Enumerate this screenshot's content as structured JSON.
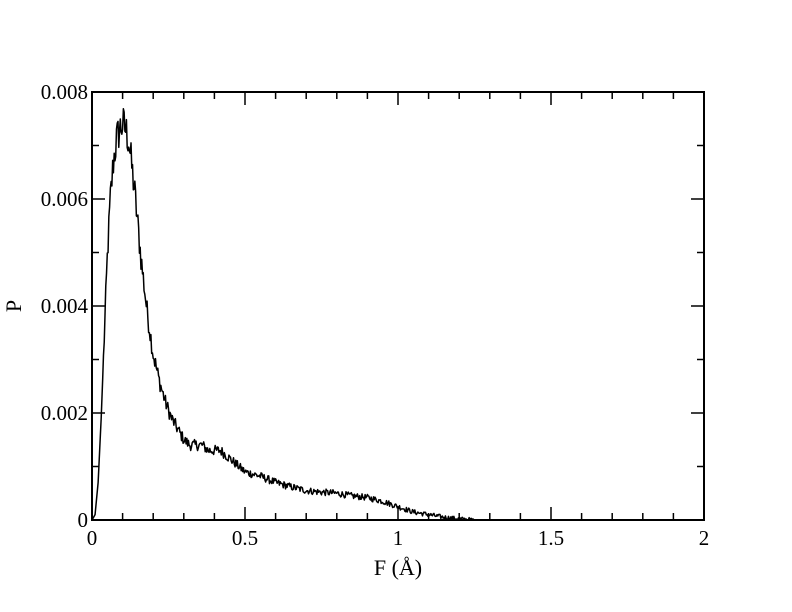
{
  "chart_data": {
    "type": "line",
    "xlabel": "F (Å)",
    "ylabel": "P",
    "xlim": [
      0,
      2
    ],
    "ylim": [
      0,
      0.008
    ],
    "x_major_ticks": [
      0,
      0.5,
      1,
      1.5,
      2
    ],
    "x_tick_labels": [
      "0",
      "0.5",
      "1",
      "1.5",
      "2"
    ],
    "x_minor_ticks": [
      0.1,
      0.2,
      0.3,
      0.4,
      0.6,
      0.7,
      0.8,
      0.9,
      1.1,
      1.2,
      1.3,
      1.4,
      1.6,
      1.7,
      1.8,
      1.9
    ],
    "y_major_ticks": [
      0,
      0.002,
      0.004,
      0.006,
      0.008
    ],
    "y_tick_labels": [
      "0",
      "0.002",
      "0.004",
      "0.006",
      "0.008"
    ],
    "y_minor_ticks": [
      0.001,
      0.003,
      0.005,
      0.007
    ],
    "grid": false,
    "legend": "none",
    "line_color": "#000000",
    "series": [
      {
        "x": [
          0,
          0.01,
          0.02,
          0.03,
          0.04,
          0.05,
          0.06,
          0.07,
          0.08,
          0.09,
          0.1,
          0.11,
          0.12,
          0.13,
          0.14,
          0.15,
          0.16,
          0.17,
          0.18,
          0.19,
          0.2,
          0.22,
          0.24,
          0.26,
          0.28,
          0.3,
          0.32,
          0.34,
          0.36,
          0.38,
          0.4,
          0.42,
          0.44,
          0.46,
          0.48,
          0.5,
          0.55,
          0.6,
          0.65,
          0.7,
          0.75,
          0.8,
          0.85,
          0.9,
          0.95,
          1,
          1.05,
          1.1,
          1.15,
          1.2,
          1.25,
          1.3
        ],
        "y": [
          0,
          0.0001,
          0.0007,
          0.0019,
          0.0034,
          0.0049,
          0.006,
          0.0067,
          0.0071,
          0.0073,
          0.0074,
          0.0073,
          0.0071,
          0.0066,
          0.0061,
          0.0055,
          0.0049,
          0.0044,
          0.0039,
          0.0035,
          0.0031,
          0.0026,
          0.0022,
          0.0019,
          0.0017,
          0.0015,
          0.0014,
          0.0014,
          0.0014,
          0.0013,
          0.0013,
          0.0013,
          0.0012,
          0.0011,
          0.001,
          0.0009,
          0.00082,
          0.0007,
          0.00062,
          0.00055,
          0.00052,
          0.0005,
          0.00045,
          0.00042,
          0.00035,
          0.00025,
          0.00015,
          0.0001,
          5e-05,
          2e-05,
          0,
          0
        ]
      }
    ]
  }
}
